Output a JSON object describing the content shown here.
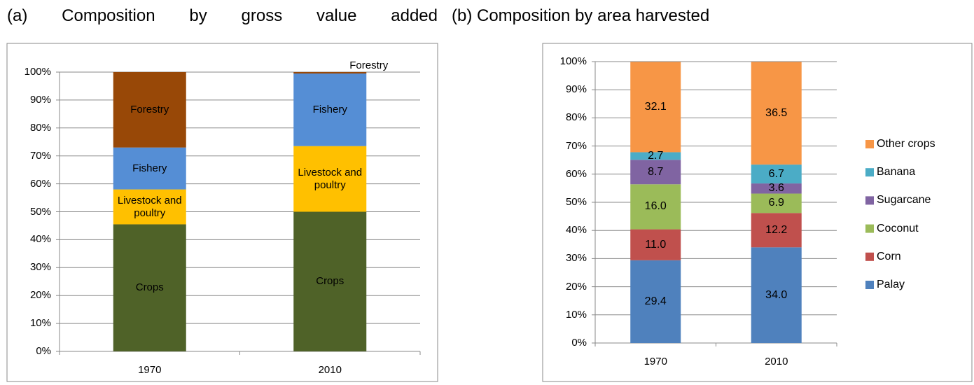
{
  "chart_data": [
    {
      "type": "bar",
      "stacked": true,
      "title": "(a) Composition by gross value added",
      "categories": [
        "1970",
        "2010"
      ],
      "series": [
        {
          "name": "Crops",
          "color": "#4f6228",
          "values": [
            45.5,
            50
          ]
        },
        {
          "name": "Livestock and poultry",
          "color": "#ffc000",
          "values": [
            12.5,
            23.5
          ]
        },
        {
          "name": "Fishery",
          "color": "#558ed5",
          "values": [
            15,
            26
          ]
        },
        {
          "name": "Forestry",
          "color": "#984807",
          "values": [
            27,
            0.5
          ]
        }
      ],
      "ylim": [
        0,
        100
      ],
      "yticks": [
        {
          "value": 0,
          "label": "0%"
        },
        {
          "value": 10,
          "label": "10%"
        },
        {
          "value": 20,
          "label": "20%"
        },
        {
          "value": 30,
          "label": "30%"
        },
        {
          "value": 40,
          "label": "40%"
        },
        {
          "value": 50,
          "label": "50%"
        },
        {
          "value": 60,
          "label": "60%"
        },
        {
          "value": 70,
          "label": "70%"
        },
        {
          "value": 80,
          "label": "80%"
        },
        {
          "value": 90,
          "label": "90%"
        },
        {
          "value": 100,
          "label": "100%"
        }
      ],
      "grid": true
    },
    {
      "type": "bar",
      "stacked": true,
      "title": "(b) Composition by area harvested",
      "categories": [
        "1970",
        "2010"
      ],
      "series": [
        {
          "name": "Palay",
          "color": "#4f81bd",
          "values": [
            29.4,
            34.0
          ],
          "value_labels": [
            "29.4",
            "34.0"
          ]
        },
        {
          "name": "Corn",
          "color": "#c0504d",
          "values": [
            11.0,
            12.2
          ],
          "value_labels": [
            "11.0",
            "12.2"
          ]
        },
        {
          "name": "Coconut",
          "color": "#9bbb59",
          "values": [
            16.0,
            6.9
          ],
          "value_labels": [
            "16.0",
            "6.9"
          ]
        },
        {
          "name": "Sugarcane",
          "color": "#8064a2",
          "values": [
            8.7,
            3.6
          ],
          "value_labels": [
            "8.7",
            "3.6"
          ]
        },
        {
          "name": "Banana",
          "color": "#4bacc6",
          "values": [
            2.7,
            6.7
          ],
          "value_labels": [
            "2.7",
            "6.7"
          ]
        },
        {
          "name": "Other crops",
          "color": "#f79646",
          "values": [
            32.1,
            36.5
          ],
          "value_labels": [
            "32.1",
            "36.5"
          ]
        }
      ],
      "ylim": [
        0,
        100
      ],
      "yticks": [
        {
          "value": 0,
          "label": "0%"
        },
        {
          "value": 10,
          "label": "10%"
        },
        {
          "value": 20,
          "label": "20%"
        },
        {
          "value": 30,
          "label": "30%"
        },
        {
          "value": 40,
          "label": "40%"
        },
        {
          "value": 50,
          "label": "50%"
        },
        {
          "value": 60,
          "label": "60%"
        },
        {
          "value": 70,
          "label": "70%"
        },
        {
          "value": 80,
          "label": "80%"
        },
        {
          "value": 90,
          "label": "90%"
        },
        {
          "value": 100,
          "label": "100%"
        }
      ],
      "grid": true,
      "legend": "right"
    }
  ]
}
